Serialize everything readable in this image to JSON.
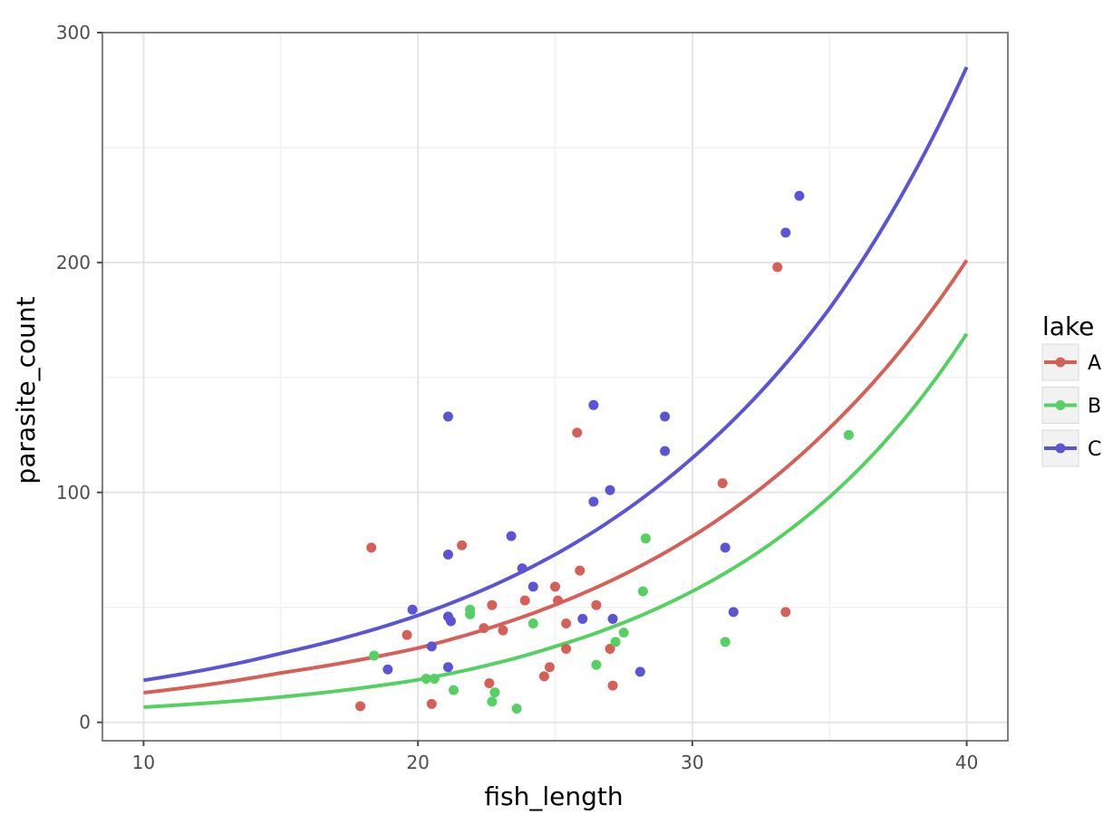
{
  "chart_data": {
    "type": "scatter",
    "xlabel": "fish_length",
    "ylabel": "parasite_count",
    "xlim": [
      8.5,
      41.5
    ],
    "ylim": [
      -8,
      300
    ],
    "x_ticks": [
      10,
      20,
      30,
      40
    ],
    "y_ticks": [
      0,
      100,
      200,
      300
    ],
    "x_tick_labels": [
      "10",
      "20",
      "30",
      "40"
    ],
    "y_tick_labels": [
      "0",
      "100",
      "200",
      "300"
    ],
    "grid": true,
    "legend": {
      "title": "lake",
      "position": "right"
    },
    "series": [
      {
        "name": "A",
        "color": "#d65f58",
        "points": [
          [
            17.9,
            7
          ],
          [
            18.3,
            76
          ],
          [
            19.6,
            38
          ],
          [
            20.5,
            8
          ],
          [
            21.6,
            77
          ],
          [
            22.4,
            41
          ],
          [
            22.6,
            17
          ],
          [
            22.7,
            51
          ],
          [
            23.1,
            40
          ],
          [
            23.9,
            53
          ],
          [
            24.6,
            20
          ],
          [
            24.8,
            24
          ],
          [
            25.0,
            59
          ],
          [
            25.1,
            53
          ],
          [
            25.4,
            43
          ],
          [
            25.4,
            32
          ],
          [
            25.8,
            126
          ],
          [
            25.9,
            66
          ],
          [
            26.5,
            51
          ],
          [
            27.0,
            32
          ],
          [
            27.1,
            16
          ],
          [
            31.1,
            104
          ],
          [
            33.1,
            198
          ],
          [
            33.4,
            48
          ]
        ],
        "curve": [
          [
            10,
            12.9
          ],
          [
            15,
            21.5
          ],
          [
            20,
            32.3
          ],
          [
            25,
            51.1
          ],
          [
            30,
            80.9
          ],
          [
            35,
            128.0
          ],
          [
            40,
            201.0
          ]
        ]
      },
      {
        "name": "B",
        "color": "#55d163",
        "points": [
          [
            18.4,
            29
          ],
          [
            20.3,
            19
          ],
          [
            20.6,
            19
          ],
          [
            21.3,
            14
          ],
          [
            21.9,
            47
          ],
          [
            21.9,
            49
          ],
          [
            22.7,
            9
          ],
          [
            22.8,
            13
          ],
          [
            23.6,
            6
          ],
          [
            24.2,
            43
          ],
          [
            26.5,
            25
          ],
          [
            27.2,
            35
          ],
          [
            27.5,
            39
          ],
          [
            28.2,
            57
          ],
          [
            28.3,
            80
          ],
          [
            31.2,
            35
          ],
          [
            35.7,
            125
          ]
        ],
        "curve": [
          [
            10,
            6.6
          ],
          [
            15,
            11.0
          ],
          [
            20,
            18.5
          ],
          [
            25,
            33.0
          ],
          [
            30,
            57.0
          ],
          [
            35,
            98.0
          ],
          [
            40,
            169.0
          ]
        ]
      },
      {
        "name": "C",
        "color": "#5b54d4",
        "points": [
          [
            18.9,
            23
          ],
          [
            19.8,
            49
          ],
          [
            20.5,
            33
          ],
          [
            21.1,
            133
          ],
          [
            21.1,
            73
          ],
          [
            21.1,
            46
          ],
          [
            21.1,
            24
          ],
          [
            21.2,
            44
          ],
          [
            23.4,
            81
          ],
          [
            23.8,
            67
          ],
          [
            24.2,
            59
          ],
          [
            26.0,
            45
          ],
          [
            26.4,
            138
          ],
          [
            26.4,
            96
          ],
          [
            27.0,
            101
          ],
          [
            27.1,
            45
          ],
          [
            28.1,
            22
          ],
          [
            29.0,
            133
          ],
          [
            29.0,
            118
          ],
          [
            31.2,
            76
          ],
          [
            31.5,
            48
          ],
          [
            33.4,
            213
          ],
          [
            33.9,
            229
          ]
        ],
        "curve": [
          [
            10,
            18.3
          ],
          [
            15,
            30.0
          ],
          [
            20,
            46.5
          ],
          [
            25,
            73.0
          ],
          [
            30,
            115.0
          ],
          [
            35,
            180.0
          ],
          [
            40,
            285.0
          ]
        ]
      }
    ]
  }
}
